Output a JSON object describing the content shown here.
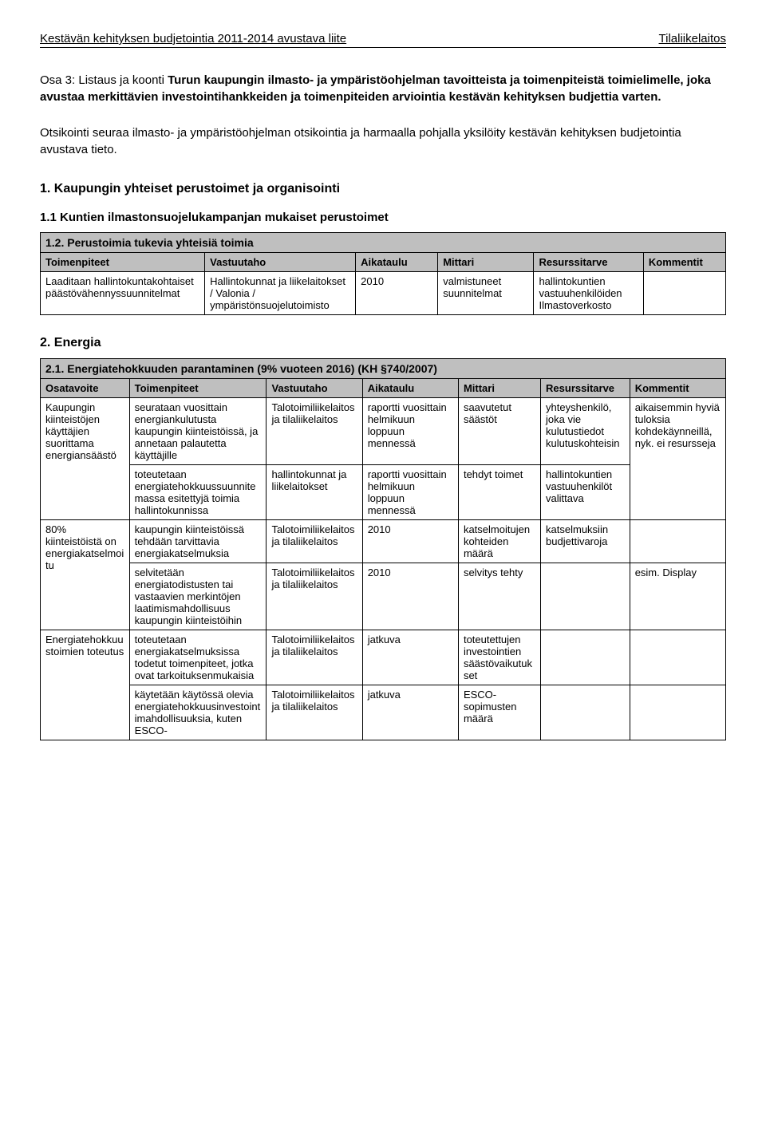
{
  "header": {
    "left": "Kestävän kehityksen budjetointia 2011-2014 avustava liite",
    "right": "Tilaliikelaitos"
  },
  "intro": {
    "prefix": "Osa 3: Listaus ja koonti ",
    "bold": "Turun kaupungin ilmasto- ja ympäristöohjelman tavoitteista ja toimenpiteistä toimielimelle, joka avustaa merkittävien investointihankkeiden ja toimenpiteiden arviointia kestävän kehityksen budjettia varten."
  },
  "note": "Otsikointi seuraa ilmasto- ja ympäristöohjelman otsikointia ja harmaalla pohjalla yksilöity kestävän kehityksen budjetointia avustava tieto.",
  "sec1": {
    "title": "1. Kaupungin yhteiset perustoimet ja organisointi",
    "sub1": "1.1 Kuntien ilmastonsuojelukampanjan mukaiset perustoimet",
    "sub2": "1.2. Perustoimia tukevia yhteisiä toimia"
  },
  "table1": {
    "headers": [
      "Toimenpiteet",
      "Vastuutaho",
      "Aikataulu",
      "Mittari",
      "Resurssitarve",
      "Kommentit"
    ],
    "row": {
      "c1": "Laaditaan hallintokuntakohtaiset päästövähennyssuunnitelmat",
      "c2": "Hallintokunnat ja liikelaitokset / Valonia / ympäristönsuojelutoimisto",
      "c3": "2010",
      "c4": "valmistuneet suunnitelmat",
      "c5": "hallintokuntien vastuuhenkilöiden Ilmastoverkosto",
      "c6": ""
    }
  },
  "sec2": {
    "title": "2. Energia",
    "sub1": "2.1. Energiatehokkuuden parantaminen (9% vuoteen 2016) (KH §740/2007)"
  },
  "table2": {
    "headers": [
      "Osatavoite",
      "Toimenpiteet",
      "Vastuutaho",
      "Aikataulu",
      "Mittari",
      "Resurssitarve",
      "Kommentit"
    ],
    "rows": [
      {
        "osatavoite": "Kaupungin kiinteistöjen käyttäjien suorittama energiansäästö",
        "osatavoite_rowspan": 2,
        "c2": "seurataan vuosittain energiankulutusta kaupungin kiinteistöissä, ja annetaan palautetta käyttäjille",
        "c3": "Talotoimiliikelaitos ja tilaliikelaitos",
        "c4": "raportti vuosittain helmikuun loppuun mennessä",
        "c5": "saavutetut säästöt",
        "c6": "yhteyshenkilö, joka vie kulutustiedot kulutuskohteisin",
        "c7": "aikaisemmin hyviä tuloksia kohdekäynneillä, nyk. ei resursseja",
        "c7_rowspan": 2
      },
      {
        "c2": "toteutetaan energiatehokkuussuunnitemassa esitettyjä toimia hallintokunnissa",
        "c3": "hallintokunnat ja liikelaitokset",
        "c4": "raportti vuosittain helmikuun loppuun mennessä",
        "c5": "tehdyt toimet",
        "c6": "hallintokuntien vastuuhenkilöt valittava"
      },
      {
        "osatavoite": "80% kiinteistöistä on energiakatselmoitu",
        "osatavoite_rowspan": 2,
        "c2": "kaupungin kiinteistöissä tehdään tarvittavia energiakatselmuksia",
        "c3": "Talotoimiliikelaitos ja tilaliikelaitos",
        "c4": "2010",
        "c5": "katselmoitujen kohteiden määrä",
        "c6": "katselmuksiin budjettivaroja",
        "c7": ""
      },
      {
        "c2": "selvitetään energiatodistusten tai vastaavien merkintöjen laatimismahdollisuus kaupungin kiinteistöihin",
        "c3": "Talotoimiliikelaitos ja tilaliikelaitos",
        "c4": "2010",
        "c5": "selvitys tehty",
        "c6": "",
        "c7": "esim. Display"
      },
      {
        "osatavoite": "Energiatehokkuustoimien toteutus",
        "osatavoite_rowspan": 2,
        "c2": "toteutetaan energiakatselmuksissa todetut toimenpiteet, jotka ovat tarkoituksenmukaisia",
        "c3": "Talotoimiliikelaitos ja tilaliikelaitos",
        "c4": "jatkuva",
        "c5": "toteutettujen investointien säästövaikutukset",
        "c6": "",
        "c7": ""
      },
      {
        "c2": "käytetään käytössä olevia energiatehokkuusinvestointimahdollisuuksia, kuten ESCO-",
        "c3": "Talotoimiliikelaitos ja tilaliikelaitos",
        "c4": "jatkuva",
        "c5": "ESCO-sopimusten määrä",
        "c6": "",
        "c7": ""
      }
    ]
  }
}
